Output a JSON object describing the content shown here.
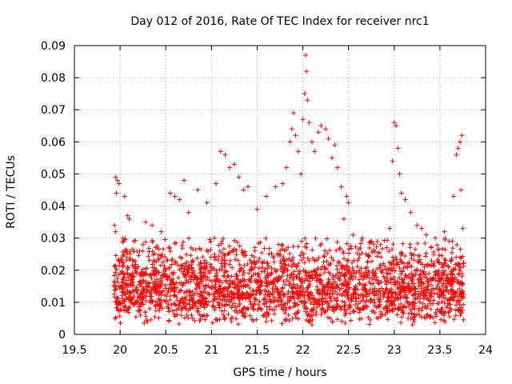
{
  "chart_data": {
    "type": "scatter",
    "title": "Day 012 of 2016, Rate Of TEC Index for receiver nrc1",
    "xlabel": "GPS time / hours",
    "ylabel": "ROTI / TECUs",
    "xlim": [
      19.5,
      24
    ],
    "ylim": [
      0,
      0.09
    ],
    "x_ticks": [
      "19.5",
      "20",
      "20.5",
      "21",
      "21.5",
      "22",
      "22.5",
      "23",
      "23.5",
      "24"
    ],
    "y_ticks": [
      "0",
      "0.01",
      "0.02",
      "0.03",
      "0.04",
      "0.05",
      "0.06",
      "0.07",
      "0.08",
      "0.09"
    ],
    "grid": true,
    "marker": "+",
    "series": [
      {
        "name": "ROTI",
        "color": "#ff0000",
        "points": [
          [
            19.95,
            0.049
          ],
          [
            19.97,
            0.048
          ],
          [
            19.99,
            0.047
          ],
          [
            19.96,
            0.044
          ],
          [
            20.05,
            0.043
          ],
          [
            19.94,
            0.034
          ],
          [
            19.95,
            0.032
          ],
          [
            20.08,
            0.037
          ],
          [
            20.1,
            0.036
          ],
          [
            20.15,
            0.029
          ],
          [
            20.25,
            0.028
          ],
          [
            20.28,
            0.035
          ],
          [
            20.35,
            0.034
          ],
          [
            20.45,
            0.032
          ],
          [
            20.55,
            0.044
          ],
          [
            20.6,
            0.043
          ],
          [
            20.65,
            0.042
          ],
          [
            20.7,
            0.048
          ],
          [
            20.75,
            0.038
          ],
          [
            20.85,
            0.045
          ],
          [
            20.95,
            0.041
          ],
          [
            21.05,
            0.047
          ],
          [
            21.1,
            0.057
          ],
          [
            21.15,
            0.056
          ],
          [
            21.2,
            0.052
          ],
          [
            21.25,
            0.053
          ],
          [
            21.3,
            0.049
          ],
          [
            21.35,
            0.045
          ],
          [
            21.4,
            0.046
          ],
          [
            21.5,
            0.039
          ],
          [
            21.6,
            0.043
          ],
          [
            21.7,
            0.046
          ],
          [
            21.78,
            0.047
          ],
          [
            21.82,
            0.052
          ],
          [
            21.86,
            0.06
          ],
          [
            21.88,
            0.064
          ],
          [
            21.9,
            0.069
          ],
          [
            21.92,
            0.062
          ],
          [
            21.95,
            0.057
          ],
          [
            21.98,
            0.05
          ],
          [
            22.0,
            0.067
          ],
          [
            22.02,
            0.075
          ],
          [
            22.03,
            0.087
          ],
          [
            22.04,
            0.082
          ],
          [
            22.05,
            0.073
          ],
          [
            22.07,
            0.066
          ],
          [
            22.1,
            0.06
          ],
          [
            22.13,
            0.057
          ],
          [
            22.17,
            0.063
          ],
          [
            22.2,
            0.065
          ],
          [
            22.25,
            0.064
          ],
          [
            22.28,
            0.061
          ],
          [
            22.32,
            0.055
          ],
          [
            22.35,
            0.059
          ],
          [
            22.38,
            0.052
          ],
          [
            22.42,
            0.046
          ],
          [
            22.48,
            0.043
          ],
          [
            22.5,
            0.041
          ],
          [
            22.45,
            0.036
          ],
          [
            22.55,
            0.031
          ],
          [
            22.65,
            0.03
          ],
          [
            22.75,
            0.029
          ],
          [
            22.85,
            0.028
          ],
          [
            22.95,
            0.033
          ],
          [
            22.98,
            0.054
          ],
          [
            23.0,
            0.066
          ],
          [
            23.02,
            0.065
          ],
          [
            23.04,
            0.058
          ],
          [
            23.06,
            0.05
          ],
          [
            23.08,
            0.044
          ],
          [
            23.12,
            0.042
          ],
          [
            23.18,
            0.038
          ],
          [
            23.25,
            0.034
          ],
          [
            23.3,
            0.033
          ],
          [
            23.35,
            0.031
          ],
          [
            23.45,
            0.03
          ],
          [
            23.55,
            0.032
          ],
          [
            23.6,
            0.029
          ],
          [
            23.65,
            0.043
          ],
          [
            23.68,
            0.056
          ],
          [
            23.7,
            0.058
          ],
          [
            23.72,
            0.06
          ],
          [
            23.74,
            0.062
          ],
          [
            23.73,
            0.045
          ],
          [
            23.75,
            0.033
          ],
          [
            23.72,
            0.024
          ],
          [
            23.7,
            0.022
          ],
          [
            23.2,
            0.003
          ],
          [
            23.22,
            0.004
          ],
          [
            23.18,
            0.005
          ],
          [
            21.6,
            0.004
          ],
          [
            22.1,
            0.003
          ],
          [
            22.3,
            0.005
          ],
          [
            20.3,
            0.004
          ]
        ],
        "background_band": {
          "x_range": [
            19.93,
            23.76
          ],
          "typical_range": [
            0.003,
            0.03
          ],
          "peak_density_around": 0.012,
          "approx_points": 2500
        }
      }
    ]
  }
}
